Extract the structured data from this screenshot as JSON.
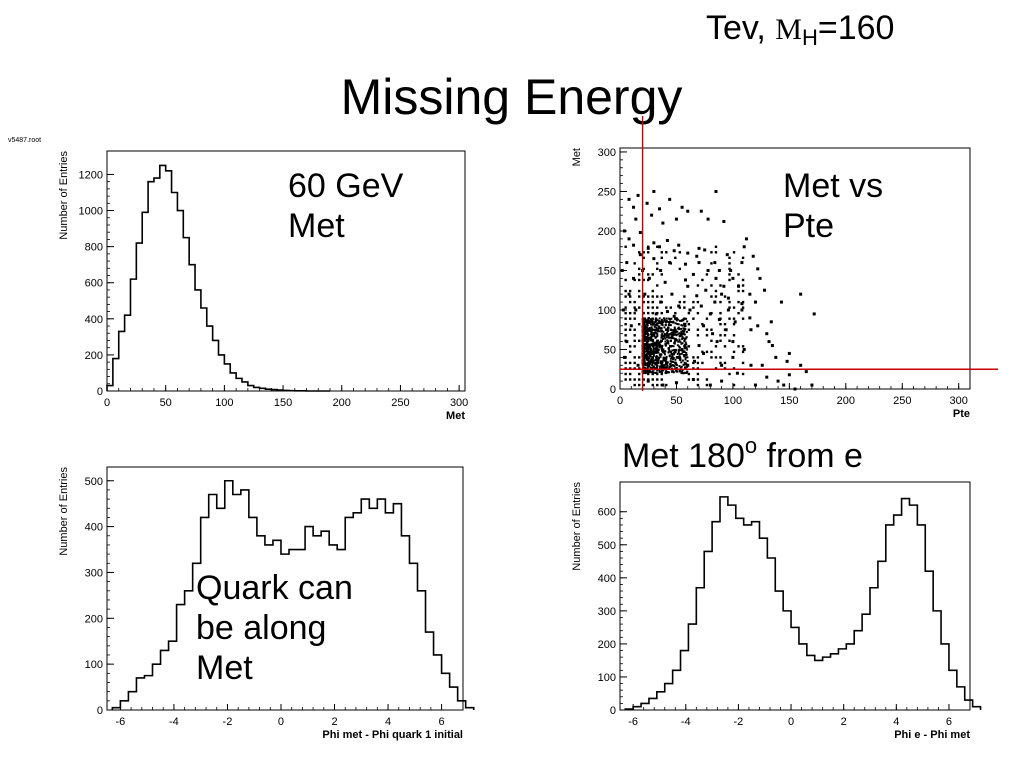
{
  "slide": {
    "title": "Missing Energy",
    "corner": {
      "prefix": "Tev, ",
      "symbol": "M",
      "subscript": "H",
      "suffix": "=160"
    },
    "file_tag": "v5487.root",
    "notes": {
      "met60_line1": "60 GeV",
      "met60_line2": "Met",
      "scatter_line1": "Met vs",
      "scatter_line2": "Pte",
      "phi_e_text": "Met 180",
      "phi_e_sup": "o",
      "phi_e_tail": " from e",
      "quark_line1": "Quark can",
      "quark_line2": "be along",
      "quark_line3": "Met"
    }
  },
  "colors": {
    "axis": "#000000",
    "cut_line": "#cc0000"
  },
  "chart_data": [
    {
      "id": "met",
      "type": "histogram",
      "xlabel": "Met",
      "ylabel": "Number of Entries",
      "xlim": [
        0,
        305
      ],
      "ylim": [
        0,
        1330
      ],
      "xticks": [
        0,
        50,
        100,
        150,
        200,
        250,
        300
      ],
      "yticks": [
        0,
        200,
        400,
        600,
        800,
        1000,
        1200
      ],
      "bin_edges_start": 0,
      "bin_width": 5,
      "values": [
        30,
        180,
        330,
        420,
        620,
        820,
        990,
        1160,
        1180,
        1250,
        1220,
        1100,
        1000,
        850,
        700,
        560,
        460,
        360,
        280,
        200,
        150,
        100,
        70,
        50,
        30,
        20,
        15,
        10,
        8,
        5,
        3,
        2,
        1,
        1,
        0,
        0,
        0,
        0
      ]
    },
    {
      "id": "scatter",
      "type": "scatter",
      "xlabel": "Pte",
      "ylabel": "Met",
      "xlim": [
        0,
        310
      ],
      "ylim": [
        0,
        305
      ],
      "xticks": [
        0,
        50,
        100,
        150,
        200,
        250,
        300
      ],
      "yticks": [
        0,
        50,
        100,
        150,
        200,
        250,
        300
      ],
      "cuts": {
        "x": 20,
        "y": 25
      },
      "cluster": {
        "x_range": [
          20,
          60
        ],
        "y_range": [
          20,
          90
        ]
      },
      "points": [
        [
          8,
          240
        ],
        [
          12,
          230
        ],
        [
          14,
          215
        ],
        [
          16,
          245
        ],
        [
          24,
          235
        ],
        [
          28,
          220
        ],
        [
          30,
          250
        ],
        [
          35,
          228
        ],
        [
          38,
          210
        ],
        [
          44,
          240
        ],
        [
          50,
          215
        ],
        [
          55,
          230
        ],
        [
          60,
          225
        ],
        [
          72,
          225
        ],
        [
          78,
          215
        ],
        [
          85,
          250
        ],
        [
          92,
          212
        ],
        [
          8,
          190
        ],
        [
          12,
          182
        ],
        [
          18,
          198
        ],
        [
          25,
          178
        ],
        [
          30,
          185
        ],
        [
          35,
          180
        ],
        [
          42,
          188
        ],
        [
          48,
          175
        ],
        [
          52,
          182
        ],
        [
          60,
          172
        ],
        [
          68,
          168
        ],
        [
          75,
          176
        ],
        [
          84,
          160
        ],
        [
          95,
          170
        ],
        [
          110,
          180
        ],
        [
          112,
          190
        ],
        [
          98,
          150
        ],
        [
          108,
          160
        ],
        [
          118,
          168
        ],
        [
          122,
          152
        ],
        [
          100,
          140
        ],
        [
          105,
          130
        ],
        [
          115,
          120
        ],
        [
          120,
          110
        ],
        [
          128,
          125
        ],
        [
          108,
          100
        ],
        [
          115,
          90
        ],
        [
          122,
          80
        ],
        [
          130,
          70
        ],
        [
          100,
          60
        ],
        [
          110,
          50
        ],
        [
          135,
          55
        ],
        [
          150,
          45
        ],
        [
          138,
          40
        ],
        [
          148,
          35
        ],
        [
          160,
          30
        ],
        [
          130,
          15
        ],
        [
          140,
          10
        ],
        [
          150,
          18
        ],
        [
          165,
          22
        ],
        [
          143,
          110
        ],
        [
          160,
          120
        ],
        [
          172,
          95
        ],
        [
          170,
          5
        ],
        [
          145,
          5
        ],
        [
          155,
          0
        ],
        [
          120,
          5
        ],
        [
          90,
          10
        ],
        [
          80,
          5
        ],
        [
          65,
          12
        ],
        [
          50,
          8
        ],
        [
          38,
          5
        ],
        [
          25,
          10
        ],
        [
          60,
          130
        ],
        [
          68,
          118
        ],
        [
          72,
          105
        ],
        [
          80,
          95
        ],
        [
          88,
          88
        ],
        [
          92,
          130
        ],
        [
          96,
          115
        ],
        [
          85,
          140
        ],
        [
          78,
          150
        ],
        [
          70,
          160
        ],
        [
          65,
          145
        ],
        [
          58,
          138
        ],
        [
          62,
          100
        ],
        [
          74,
          80
        ],
        [
          82,
          70
        ],
        [
          86,
          60
        ],
        [
          94,
          75
        ],
        [
          102,
          85
        ],
        [
          74,
          45
        ],
        [
          70,
          55
        ],
        [
          66,
          35
        ],
        [
          56,
          70
        ],
        [
          52,
          105
        ],
        [
          46,
          120
        ],
        [
          40,
          135
        ],
        [
          36,
          150
        ],
        [
          30,
          165
        ],
        [
          26,
          140
        ],
        [
          22,
          120
        ],
        [
          14,
          100
        ],
        [
          10,
          80
        ],
        [
          6,
          60
        ],
        [
          4,
          40
        ],
        [
          16,
          30
        ],
        [
          24,
          55
        ],
        [
          28,
          75
        ],
        [
          32,
          95
        ],
        [
          42,
          98
        ],
        [
          48,
          92
        ],
        [
          55,
          50
        ],
        [
          60,
          30
        ],
        [
          90,
          30
        ],
        [
          100,
          40
        ],
        [
          104,
          20
        ],
        [
          116,
          30
        ],
        [
          126,
          30
        ],
        [
          134,
          85
        ],
        [
          116,
          75
        ],
        [
          108,
          108
        ],
        [
          124,
          140
        ],
        [
          132,
          60
        ],
        [
          90,
          120
        ],
        [
          96,
          100
        ],
        [
          84,
          110
        ],
        [
          76,
          125
        ],
        [
          88,
          150
        ],
        [
          70,
          178
        ],
        [
          58,
          158
        ],
        [
          44,
          160
        ],
        [
          36,
          110
        ],
        [
          20,
          150
        ],
        [
          18,
          170
        ],
        [
          12,
          140
        ],
        [
          8,
          120
        ],
        [
          6,
          160
        ],
        [
          4,
          200
        ],
        [
          2,
          150
        ],
        [
          3,
          100
        ]
      ]
    },
    {
      "id": "phi_quark",
      "type": "histogram",
      "xlabel": "Phi met - Phi quark 1 initial",
      "ylabel": "Number of Entries",
      "xlim": [
        -6.5,
        6.8
      ],
      "ylim": [
        0,
        530
      ],
      "xticks": [
        -6,
        -4,
        -2,
        0,
        2,
        4,
        6
      ],
      "yticks": [
        0,
        100,
        200,
        300,
        400,
        500
      ],
      "bin_edges_start": -6.3,
      "bin_width": 0.3,
      "values": [
        5,
        20,
        40,
        70,
        75,
        100,
        130,
        150,
        230,
        260,
        320,
        420,
        470,
        440,
        500,
        470,
        480,
        420,
        380,
        360,
        370,
        340,
        350,
        350,
        400,
        380,
        390,
        360,
        350,
        420,
        430,
        460,
        440,
        460,
        430,
        450,
        380,
        320,
        260,
        170,
        120,
        80,
        50,
        20,
        5
      ]
    },
    {
      "id": "phi_e",
      "type": "histogram",
      "xlabel": "Phi e - Phi met",
      "ylabel": "Number of Entries",
      "xlim": [
        -6.5,
        6.8
      ],
      "ylim": [
        0,
        690
      ],
      "xticks": [
        -6,
        -4,
        -2,
        0,
        2,
        4,
        6
      ],
      "yticks": [
        0,
        100,
        200,
        300,
        400,
        500,
        600
      ],
      "bin_edges_start": -6.3,
      "bin_width": 0.3,
      "values": [
        3,
        10,
        20,
        35,
        55,
        80,
        120,
        180,
        260,
        370,
        480,
        570,
        645,
        620,
        580,
        560,
        570,
        520,
        460,
        360,
        300,
        250,
        200,
        165,
        150,
        160,
        170,
        185,
        200,
        240,
        290,
        370,
        450,
        560,
        590,
        640,
        620,
        560,
        420,
        300,
        200,
        120,
        70,
        30,
        10
      ]
    }
  ]
}
